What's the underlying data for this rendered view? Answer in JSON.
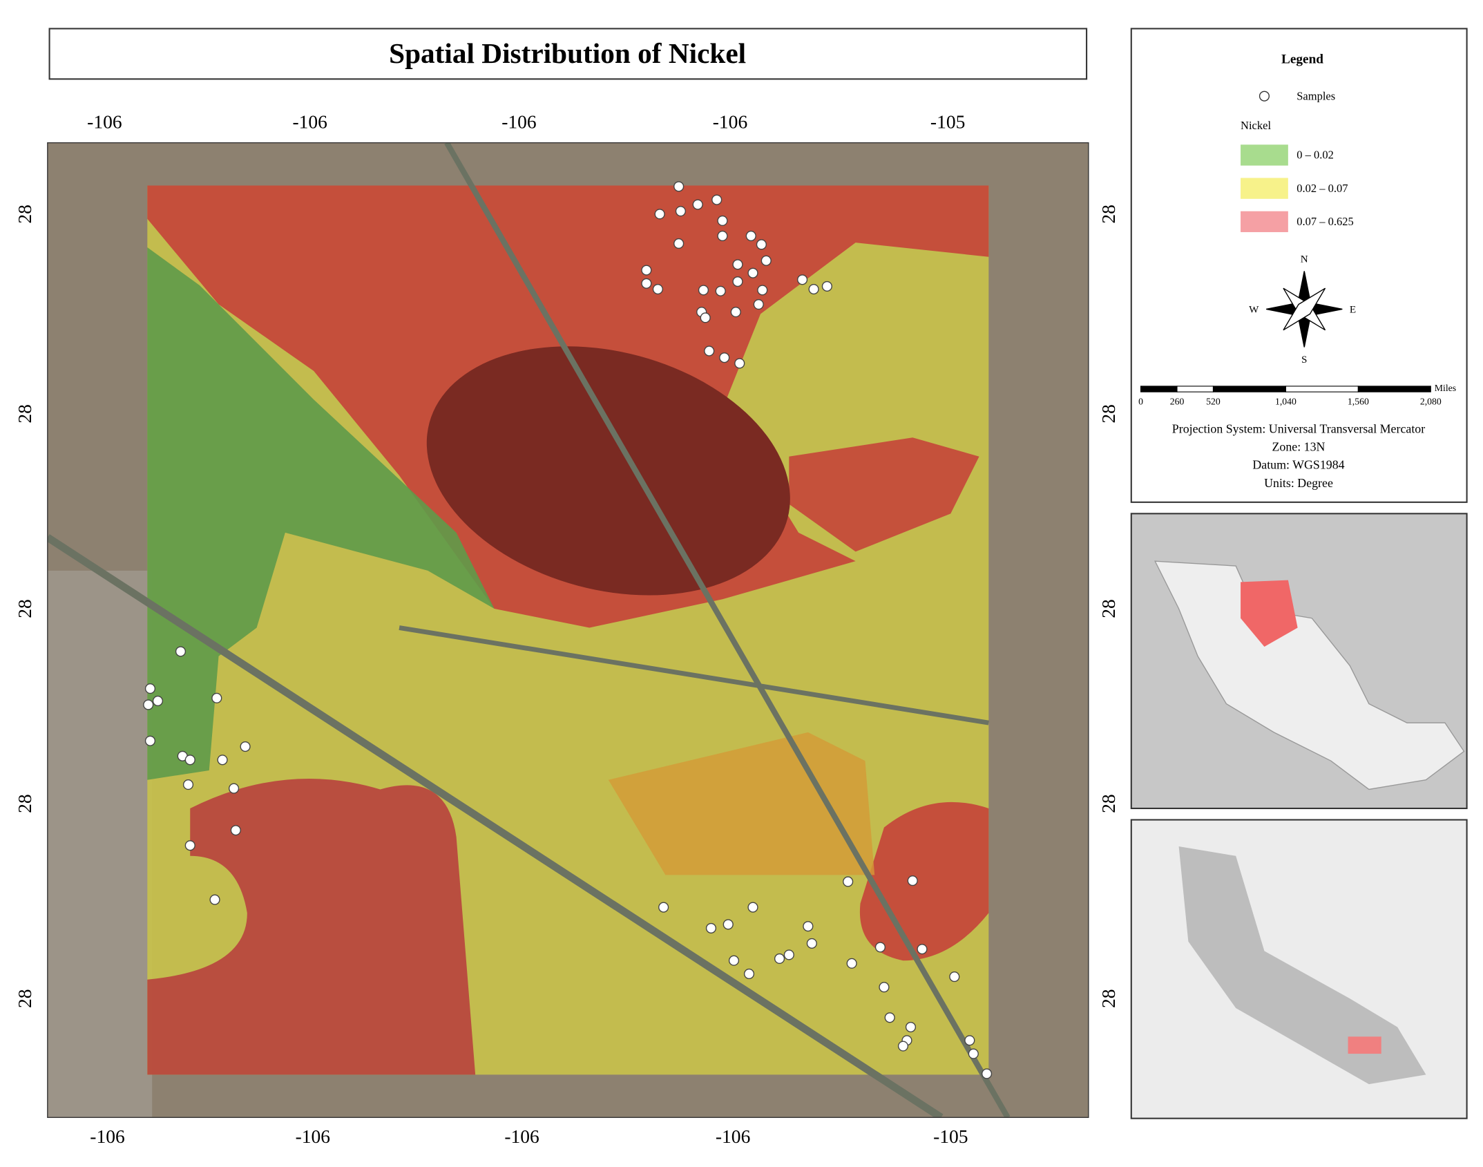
{
  "title": "Spatial Distribution of Nickel",
  "map": {
    "top_labels": [
      "-106",
      "-106",
      "-106",
      "-106",
      "-105"
    ],
    "bottom_labels": [
      "-106",
      "-106",
      "-106",
      "-106",
      "-105"
    ],
    "left_labels": [
      "28",
      "28",
      "28",
      "28",
      "28"
    ],
    "right_labels": [
      "28",
      "28",
      "28",
      "28",
      "28"
    ]
  },
  "legend": {
    "title": "Legend",
    "samples": "Samples",
    "layer": "Nickel",
    "classes": [
      {
        "label": "0 – 0.02",
        "color": "#a8dc8e"
      },
      {
        "label": "0.02 – 0.07",
        "color": "#f7f28a"
      },
      {
        "label": "0.07 – 0.625",
        "color": "#f5a0a4"
      }
    ]
  },
  "compass": {
    "n": "N",
    "s": "S",
    "e": "E",
    "w": "W"
  },
  "scale_bar": {
    "ticks": [
      0,
      260,
      520,
      {
        "value": 1040,
        "label": "1,040"
      },
      {
        "value": 1560,
        "label": "1,560"
      },
      {
        "value": 2080,
        "label": "2,080"
      }
    ],
    "unit": "Miles"
  },
  "info": [
    "Projection System: Universal Transversal Mercator",
    "Zone: 13N",
    "Datum: WGS1984",
    "Units: Degree"
  ]
}
